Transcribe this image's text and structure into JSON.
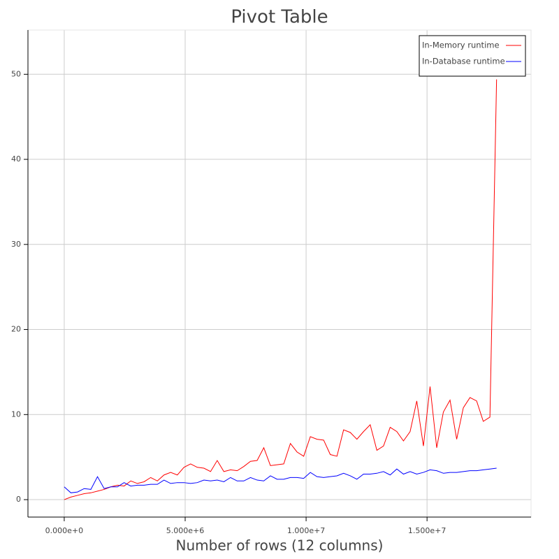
{
  "chart_data": {
    "type": "line",
    "title": "Pivot Table",
    "x_label": "Number of rows (12 columns)",
    "x": [
      0,
      275000,
      550000,
      825000,
      1100000,
      1375000,
      1650000,
      1925000,
      2200000,
      2475000,
      2750000,
      3025000,
      3300000,
      3575000,
      3850000,
      4125000,
      4400000,
      4675000,
      4950000,
      5225000,
      5500000,
      5775000,
      6050000,
      6325000,
      6600000,
      6875000,
      7150000,
      7425000,
      7700000,
      7975000,
      8250000,
      8525000,
      8800000,
      9075000,
      9350000,
      9625000,
      9900000,
      10175000,
      10450000,
      10725000,
      11000000,
      11275000,
      11550000,
      11825000,
      12100000,
      12375000,
      12650000,
      12925000,
      13200000,
      13475000,
      13750000,
      14025000,
      14300000,
      14575000,
      14850000,
      15125000,
      15400000,
      15675000,
      15950000,
      16225000,
      16500000,
      16775000,
      17050000,
      17325000,
      17600000,
      17875000
    ],
    "series": [
      {
        "name": "In-Memory runtime",
        "color": "#ff0000",
        "values": [
          0.0,
          0.3,
          0.5,
          0.7,
          0.8,
          1.0,
          1.2,
          1.5,
          1.7,
          1.6,
          2.2,
          1.9,
          2.1,
          2.6,
          2.2,
          2.9,
          3.2,
          2.9,
          3.8,
          4.2,
          3.8,
          3.7,
          3.3,
          4.6,
          3.3,
          3.5,
          3.4,
          3.9,
          4.5,
          4.6,
          6.1,
          4.0,
          4.1,
          4.2,
          6.6,
          5.6,
          5.1,
          7.4,
          7.1,
          7.0,
          5.3,
          5.1,
          8.2,
          7.9,
          7.1,
          8.0,
          8.8,
          5.8,
          6.3,
          8.5,
          8.0,
          6.9,
          8.0,
          11.6,
          6.3,
          13.3,
          6.1,
          10.3,
          11.7,
          7.1,
          10.8,
          12.0,
          11.6,
          9.2,
          9.7,
          49.4
        ]
      },
      {
        "name": "In-Database runtime",
        "color": "#0000ff",
        "values": [
          1.5,
          0.8,
          0.9,
          1.3,
          1.2,
          2.7,
          1.3,
          1.5,
          1.5,
          2.0,
          1.6,
          1.7,
          1.7,
          1.8,
          1.8,
          2.3,
          1.9,
          2.0,
          2.0,
          1.9,
          2.0,
          2.3,
          2.2,
          2.3,
          2.1,
          2.6,
          2.2,
          2.2,
          2.6,
          2.3,
          2.2,
          2.8,
          2.4,
          2.4,
          2.6,
          2.6,
          2.5,
          3.2,
          2.7,
          2.6,
          2.7,
          2.8,
          3.1,
          2.8,
          2.4,
          3.0,
          3.0,
          3.1,
          3.3,
          2.9,
          3.6,
          3.0,
          3.3,
          3.0,
          3.2,
          3.5,
          3.4,
          3.1,
          3.2,
          3.2,
          3.3,
          3.4,
          3.4,
          3.5,
          3.6,
          3.7
        ]
      }
    ],
    "xlim": [
      -1500000,
      19300000
    ],
    "ylim": [
      -2.05,
      55.2
    ],
    "xticks": [
      {
        "value": 0,
        "label": "0.000e+0"
      },
      {
        "value": 5000000,
        "label": "5.000e+6"
      },
      {
        "value": 10000000,
        "label": "1.000e+7"
      },
      {
        "value": 15000000,
        "label": "1.500e+7"
      }
    ],
    "yticks": [
      0,
      10,
      20,
      30,
      40,
      50
    ],
    "grid": true,
    "legend": "top-right"
  }
}
